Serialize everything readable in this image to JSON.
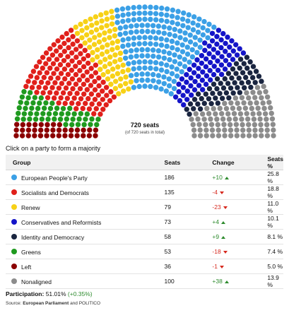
{
  "chart_data": {
    "type": "hemicycle",
    "total_seats": 720,
    "total_label": "720 seats",
    "total_sublabel": "(of 720 seats in total)",
    "series": [
      {
        "name": "Left",
        "seats": 36,
        "color": "#8b0000"
      },
      {
        "name": "Greens",
        "seats": 53,
        "color": "#1f9a1f"
      },
      {
        "name": "Socialists and Democrats",
        "seats": 135,
        "color": "#e0201b"
      },
      {
        "name": "Renew",
        "seats": 79,
        "color": "#f7d117"
      },
      {
        "name": "European People's Party",
        "seats": 186,
        "color": "#3ba0e6"
      },
      {
        "name": "Conservatives and Reformists",
        "seats": 73,
        "color": "#1414c8"
      },
      {
        "name": "Identity and Democracy",
        "seats": 58,
        "color": "#1a2540"
      },
      {
        "name": "Nonaligned",
        "seats": 100,
        "color": "#8c8c8c"
      }
    ]
  },
  "instruction": "Click on a party to form a majority",
  "table": {
    "headers": {
      "group": "Group",
      "seats": "Seats",
      "change": "Change",
      "pct": "Seats %"
    },
    "rows": [
      {
        "group": "European People's Party",
        "color": "#3ba0e6",
        "seats": "186",
        "change": "+10",
        "dir": "up",
        "pct": "25.8 %"
      },
      {
        "group": "Socialists and Democrats",
        "color": "#e0201b",
        "seats": "135",
        "change": "-4",
        "dir": "down",
        "pct": "18.8 %"
      },
      {
        "group": "Renew",
        "color": "#f7d117",
        "seats": "79",
        "change": "-23",
        "dir": "down",
        "pct": "11.0 %"
      },
      {
        "group": "Conservatives and Reformists",
        "color": "#1414c8",
        "seats": "73",
        "change": "+4",
        "dir": "up",
        "pct": "10.1 %"
      },
      {
        "group": "Identity and Democracy",
        "color": "#1a2540",
        "seats": "58",
        "change": "+9",
        "dir": "up",
        "pct": "8.1 %"
      },
      {
        "group": "Greens",
        "color": "#1f9a1f",
        "seats": "53",
        "change": "-18",
        "dir": "down",
        "pct": "7.4 %"
      },
      {
        "group": "Left",
        "color": "#8b0000",
        "seats": "36",
        "change": "-1",
        "dir": "down",
        "pct": "5.0 %"
      },
      {
        "group": "Nonaligned",
        "color": "#8c8c8c",
        "seats": "100",
        "change": "+38",
        "dir": "up",
        "pct": "13.9 %"
      }
    ]
  },
  "participation": {
    "label": "Participation:",
    "value": "51.01%",
    "change": "(+0.35%)"
  },
  "source": {
    "prefix": "Source:",
    "org": "European Parliament",
    "and": "and POLITICO"
  }
}
